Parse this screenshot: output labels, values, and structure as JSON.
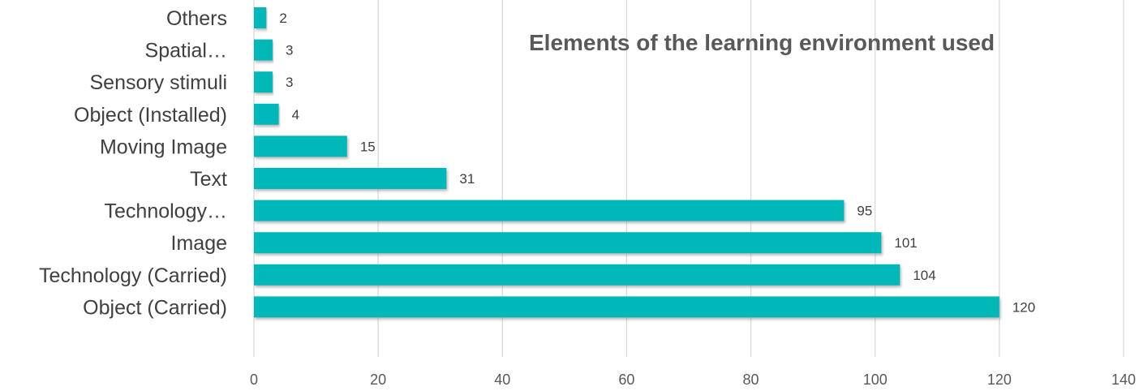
{
  "chart_data": {
    "type": "bar",
    "orientation": "horizontal",
    "title": "Elements of the learning environment used",
    "categories": [
      "Others",
      "Spatial…",
      "Sensory stimuli",
      "Object (Installed)",
      "Moving Image",
      "Text",
      "Technology…",
      "Image",
      "Technology (Carried)",
      "Object (Carried)"
    ],
    "values": [
      2,
      3,
      3,
      4,
      15,
      31,
      95,
      101,
      104,
      120
    ],
    "xlim": [
      0,
      140
    ],
    "x_ticks": [
      0,
      20,
      40,
      60,
      80,
      100,
      120,
      140
    ],
    "xlabel": "",
    "ylabel": "",
    "grid": "vertical",
    "legend": "none",
    "data_labels": true,
    "colors": {
      "bar": "#00b8b8",
      "bar_shadow": "#9a9a9a",
      "grid": "#d9d9d9",
      "title": "#595959",
      "category_label": "#404040",
      "tick_label": "#595959",
      "data_label": "#404040"
    }
  }
}
